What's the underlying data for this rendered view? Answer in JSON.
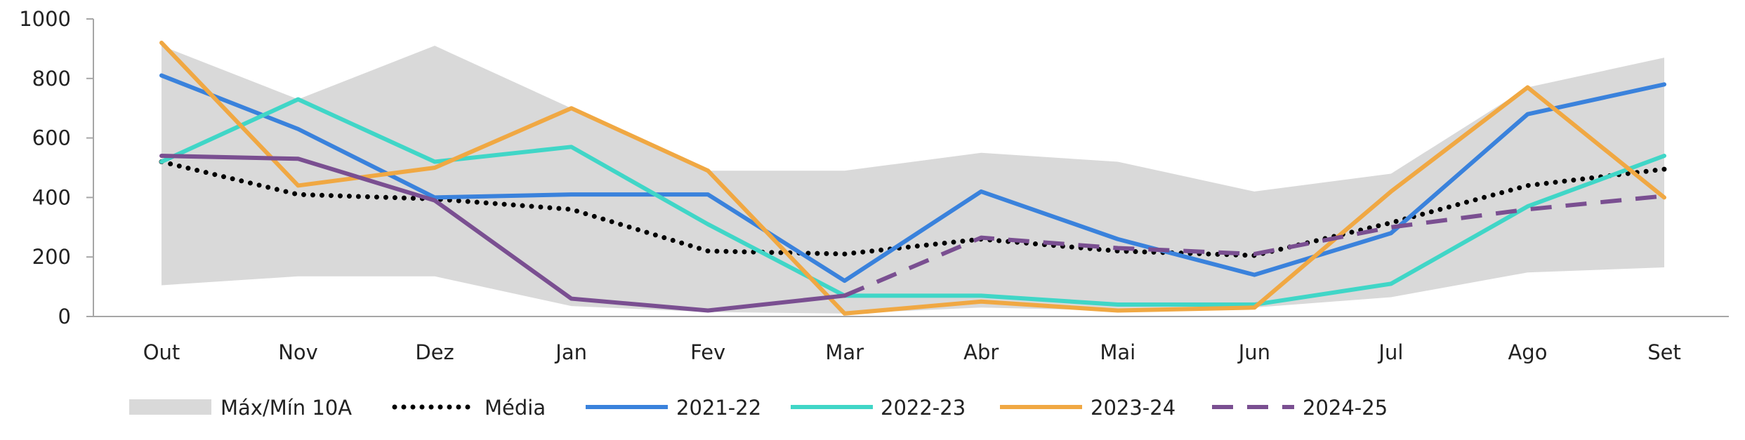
{
  "chart_data": {
    "type": "line",
    "title": "",
    "xlabel": "",
    "ylabel": "",
    "categories": [
      "Out",
      "Nov",
      "Dez",
      "Jan",
      "Fev",
      "Mar",
      "Abr",
      "Mai",
      "Jun",
      "Jul",
      "Ago",
      "Set"
    ],
    "ylim": [
      0,
      1000
    ],
    "yticks": [
      0,
      200,
      400,
      600,
      800,
      1000
    ],
    "grid": false,
    "legend_position": "bottom",
    "band": {
      "name": "Máx/Mín 10A",
      "color": "#d9d9d9",
      "max": [
        910,
        730,
        910,
        700,
        490,
        490,
        550,
        520,
        420,
        480,
        770,
        870
      ],
      "min": [
        105,
        135,
        135,
        35,
        15,
        10,
        30,
        20,
        30,
        65,
        148,
        165
      ]
    },
    "series": [
      {
        "name": "Média",
        "color": "#000000",
        "style": "dotted",
        "values": [
          520,
          410,
          395,
          360,
          220,
          210,
          260,
          220,
          205,
          315,
          440,
          495
        ]
      },
      {
        "name": "2021-22",
        "color": "#3a82dc",
        "style": "solid",
        "values": [
          810,
          630,
          400,
          410,
          410,
          120,
          420,
          260,
          140,
          280,
          680,
          780
        ]
      },
      {
        "name": "2022-23",
        "color": "#40d6c7",
        "style": "solid",
        "values": [
          520,
          730,
          520,
          570,
          310,
          70,
          70,
          40,
          40,
          110,
          370,
          540
        ]
      },
      {
        "name": "2023-24",
        "color": "#f0a843",
        "style": "solid",
        "values": [
          920,
          440,
          500,
          700,
          490,
          10,
          50,
          20,
          30,
          420,
          770,
          400
        ]
      },
      {
        "name": "2024-25",
        "color": "#7a4f91",
        "style": "mixed",
        "solid_until_index": 5,
        "values": [
          540,
          530,
          390,
          60,
          20,
          70,
          265,
          230,
          210,
          300,
          360,
          405
        ]
      }
    ]
  }
}
